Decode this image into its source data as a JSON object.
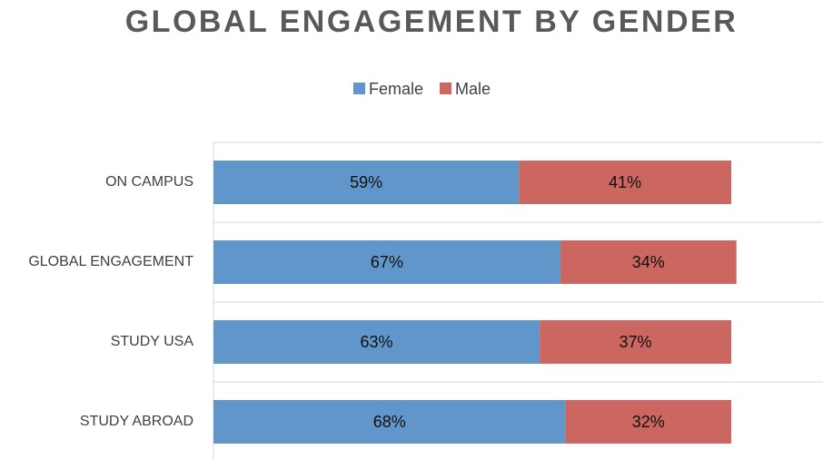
{
  "chart_data": {
    "type": "stacked-bar-horizontal",
    "title": "GLOBAL ENGAGEMENT BY GENDER",
    "categories": [
      "ON CAMPUS",
      "GLOBAL ENGAGEMENT",
      "STUDY USA",
      "STUDY ABROAD"
    ],
    "series": [
      {
        "name": "Female",
        "color": "#6096c9",
        "values": [
          59,
          67,
          63,
          68
        ],
        "value_labels": [
          "59%",
          "67%",
          "63%",
          "68%"
        ]
      },
      {
        "name": "Male",
        "color": "#cc6660",
        "values": [
          41,
          34,
          37,
          32
        ],
        "value_labels": [
          "41%",
          "34%",
          "37%",
          "32%"
        ]
      }
    ],
    "xlim": [
      0,
      100
    ],
    "legend": "top"
  }
}
